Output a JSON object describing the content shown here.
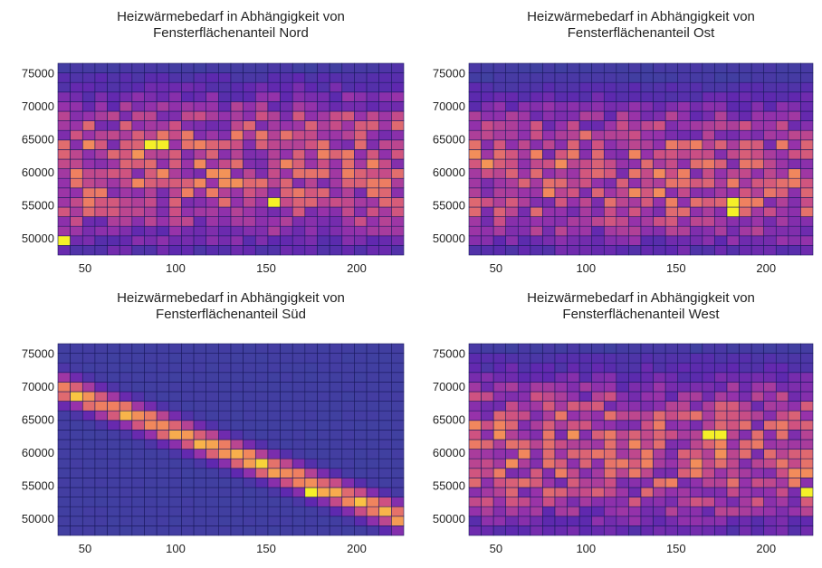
{
  "chart_data": [
    {
      "type": "heatmap",
      "title": "Heizwärmebedarf in Abhängigkeit von\nFensterflächenanteil Nord",
      "xlabel": "",
      "ylabel": "",
      "xlim": [
        35,
        226
      ],
      "ylim": [
        47500,
        76500
      ],
      "xticks": [
        50,
        100,
        150,
        200
      ],
      "yticks": [
        50000,
        55000,
        60000,
        65000,
        70000,
        75000
      ],
      "ytick_labels": [
        "50000",
        "55000",
        "60000",
        "65000",
        "70000",
        "75000"
      ],
      "xtick_labels": [
        "50",
        "100",
        "150",
        "200"
      ],
      "bins": {
        "nx": 28,
        "ny": 20
      },
      "pattern": "broad-band",
      "band_center": [
        [
          35,
          60500
        ],
        [
          226,
          61000
        ]
      ],
      "band_halfwidth": 11000,
      "hotspots": [
        [
          153,
          55800
        ],
        [
          38,
          50000
        ],
        [
          90,
          64000
        ]
      ],
      "colormap": "plasma",
      "background_color": "#4040a0",
      "grid": true
    },
    {
      "type": "heatmap",
      "title": "Heizwärmebedarf in Abhängigkeit von\nFensterflächenanteil Ost",
      "xlabel": "",
      "ylabel": "",
      "xlim": [
        35,
        226
      ],
      "ylim": [
        47500,
        76500
      ],
      "xticks": [
        50,
        100,
        150,
        200
      ],
      "yticks": [
        50000,
        55000,
        60000,
        65000,
        70000,
        75000
      ],
      "ytick_labels": [
        "50000",
        "55000",
        "60000",
        "65000",
        "70000",
        "75000"
      ],
      "xtick_labels": [
        "50",
        "100",
        "150",
        "200"
      ],
      "bins": {
        "nx": 28,
        "ny": 20
      },
      "pattern": "broad-band",
      "band_center": [
        [
          35,
          60000
        ],
        [
          226,
          59500
        ]
      ],
      "band_halfwidth": 10500,
      "hotspots": [
        [
          184,
          54800
        ]
      ],
      "colormap": "plasma",
      "background_color": "#4040a0",
      "grid": true
    },
    {
      "type": "heatmap",
      "title": "Heizwärmebedarf in Abhängigkeit von\nFensterflächenanteil Süd",
      "xlabel": "",
      "ylabel": "",
      "xlim": [
        35,
        226
      ],
      "ylim": [
        47500,
        76500
      ],
      "xticks": [
        50,
        100,
        150,
        200
      ],
      "yticks": [
        50000,
        55000,
        60000,
        65000,
        70000,
        75000
      ],
      "ytick_labels": [
        "50000",
        "55000",
        "60000",
        "65000",
        "70000",
        "75000"
      ],
      "xtick_labels": [
        "50",
        "100",
        "150",
        "200"
      ],
      "bins": {
        "nx": 28,
        "ny": 20
      },
      "pattern": "narrow-diagonal-band",
      "band_center": [
        [
          35,
          70000
        ],
        [
          226,
          50000
        ]
      ],
      "band_halfwidth": 2600,
      "hotspots": [
        [
          175,
          54500
        ]
      ],
      "colormap": "plasma",
      "background_color": "#4040a0",
      "grid": true
    },
    {
      "type": "heatmap",
      "title": "Heizwärmebedarf in Abhängigkeit von\nFensterflächenanteil West",
      "xlabel": "",
      "ylabel": "",
      "xlim": [
        35,
        226
      ],
      "ylim": [
        47500,
        76500
      ],
      "xticks": [
        50,
        100,
        150,
        200
      ],
      "yticks": [
        50000,
        55000,
        60000,
        65000,
        70000,
        75000
      ],
      "ytick_labels": [
        "50000",
        "55000",
        "60000",
        "65000",
        "70000",
        "75000"
      ],
      "xtick_labels": [
        "50",
        "100",
        "150",
        "200"
      ],
      "bins": {
        "nx": 28,
        "ny": 20
      },
      "pattern": "broad-band",
      "band_center": [
        [
          35,
          60500
        ],
        [
          226,
          60000
        ]
      ],
      "band_halfwidth": 11000,
      "hotspots": [
        [
          222,
          54500
        ],
        [
          172,
          62500
        ]
      ],
      "colormap": "plasma",
      "background_color": "#4040a0",
      "grid": true
    }
  ]
}
